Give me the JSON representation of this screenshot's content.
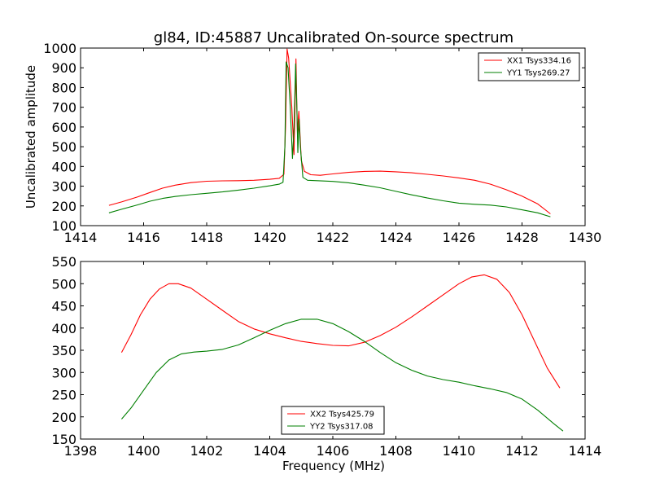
{
  "chart_data": [
    {
      "type": "line",
      "title": "gl84, ID:45887 Uncalibrated On-source spectrum",
      "xlabel": "",
      "ylabel": "Uncalibrated amplitude",
      "xlim": [
        1414,
        1430
      ],
      "ylim": [
        100,
        1000
      ],
      "xticks": [
        1414,
        1416,
        1418,
        1420,
        1422,
        1424,
        1426,
        1428,
        1430
      ],
      "yticks": [
        100,
        200,
        300,
        400,
        500,
        600,
        700,
        800,
        900,
        1000
      ],
      "grid": false,
      "legend_position": "top-right",
      "series": [
        {
          "name": "XX1 Tsys334.16",
          "color": "#ff0000",
          "points": [
            [
              1414.9,
              203
            ],
            [
              1415.3,
              220
            ],
            [
              1415.8,
              245
            ],
            [
              1416.2,
              268
            ],
            [
              1416.6,
              290
            ],
            [
              1417.0,
              305
            ],
            [
              1417.5,
              318
            ],
            [
              1418.0,
              325
            ],
            [
              1418.5,
              327
            ],
            [
              1419.0,
              328
            ],
            [
              1419.5,
              330
            ],
            [
              1420.0,
              335
            ],
            [
              1420.3,
              340
            ],
            [
              1420.45,
              360
            ],
            [
              1420.5,
              600
            ],
            [
              1420.55,
              995
            ],
            [
              1420.6,
              950
            ],
            [
              1420.7,
              700
            ],
            [
              1420.74,
              560
            ],
            [
              1420.77,
              460
            ],
            [
              1420.8,
              700
            ],
            [
              1420.83,
              945
            ],
            [
              1420.86,
              700
            ],
            [
              1420.88,
              560
            ],
            [
              1420.92,
              680
            ],
            [
              1420.96,
              560
            ],
            [
              1421.0,
              430
            ],
            [
              1421.1,
              375
            ],
            [
              1421.3,
              358
            ],
            [
              1421.6,
              355
            ],
            [
              1422.0,
              362
            ],
            [
              1422.5,
              370
            ],
            [
              1423.0,
              375
            ],
            [
              1423.5,
              376
            ],
            [
              1424.0,
              373
            ],
            [
              1424.5,
              368
            ],
            [
              1425.0,
              360
            ],
            [
              1425.5,
              352
            ],
            [
              1426.0,
              342
            ],
            [
              1426.5,
              330
            ],
            [
              1427.0,
              310
            ],
            [
              1427.5,
              282
            ],
            [
              1428.0,
              250
            ],
            [
              1428.5,
              210
            ],
            [
              1428.9,
              160
            ]
          ]
        },
        {
          "name": "YY1 Tsys269.27",
          "color": "#007f00",
          "points": [
            [
              1414.9,
              165
            ],
            [
              1415.3,
              183
            ],
            [
              1415.8,
              205
            ],
            [
              1416.2,
              224
            ],
            [
              1416.6,
              238
            ],
            [
              1417.0,
              248
            ],
            [
              1417.5,
              257
            ],
            [
              1418.0,
              264
            ],
            [
              1418.5,
              271
            ],
            [
              1419.0,
              280
            ],
            [
              1419.5,
              290
            ],
            [
              1420.0,
              302
            ],
            [
              1420.3,
              310
            ],
            [
              1420.42,
              320
            ],
            [
              1420.48,
              500
            ],
            [
              1420.52,
              930
            ],
            [
              1420.58,
              900
            ],
            [
              1420.65,
              700
            ],
            [
              1420.72,
              440
            ],
            [
              1420.77,
              600
            ],
            [
              1420.82,
              920
            ],
            [
              1420.86,
              700
            ],
            [
              1420.89,
              470
            ],
            [
              1420.93,
              640
            ],
            [
              1420.97,
              500
            ],
            [
              1421.05,
              345
            ],
            [
              1421.2,
              330
            ],
            [
              1421.5,
              328
            ],
            [
              1422.0,
              324
            ],
            [
              1422.5,
              317
            ],
            [
              1423.0,
              305
            ],
            [
              1423.5,
              292
            ],
            [
              1424.0,
              274
            ],
            [
              1424.5,
              256
            ],
            [
              1425.0,
              240
            ],
            [
              1425.5,
              226
            ],
            [
              1426.0,
              214
            ],
            [
              1426.5,
              208
            ],
            [
              1427.0,
              204
            ],
            [
              1427.5,
              195
            ],
            [
              1428.0,
              180
            ],
            [
              1428.5,
              165
            ],
            [
              1428.9,
              145
            ]
          ]
        }
      ]
    },
    {
      "type": "line",
      "title": "",
      "xlabel": "Frequency (MHz)",
      "ylabel": "",
      "xlim": [
        1398,
        1414
      ],
      "ylim": [
        150,
        550
      ],
      "xticks": [
        1398,
        1400,
        1402,
        1404,
        1406,
        1408,
        1410,
        1412,
        1414
      ],
      "yticks": [
        150,
        200,
        250,
        300,
        350,
        400,
        450,
        500,
        550
      ],
      "grid": false,
      "legend_position": "bottom-center",
      "series": [
        {
          "name": "XX2 Tsys425.79",
          "color": "#ff0000",
          "points": [
            [
              1399.3,
              345
            ],
            [
              1399.6,
              385
            ],
            [
              1399.9,
              430
            ],
            [
              1400.2,
              465
            ],
            [
              1400.5,
              488
            ],
            [
              1400.8,
              500
            ],
            [
              1401.1,
              500
            ],
            [
              1401.5,
              490
            ],
            [
              1402.0,
              465
            ],
            [
              1402.5,
              440
            ],
            [
              1403.0,
              415
            ],
            [
              1403.5,
              398
            ],
            [
              1404.0,
              387
            ],
            [
              1404.5,
              378
            ],
            [
              1405.0,
              370
            ],
            [
              1405.5,
              365
            ],
            [
              1406.0,
              361
            ],
            [
              1406.5,
              360
            ],
            [
              1407.0,
              368
            ],
            [
              1407.5,
              383
            ],
            [
              1408.0,
              402
            ],
            [
              1408.5,
              425
            ],
            [
              1409.0,
              450
            ],
            [
              1409.5,
              475
            ],
            [
              1410.0,
              500
            ],
            [
              1410.4,
              515
            ],
            [
              1410.8,
              520
            ],
            [
              1411.2,
              510
            ],
            [
              1411.6,
              480
            ],
            [
              1412.0,
              430
            ],
            [
              1412.4,
              370
            ],
            [
              1412.8,
              310
            ],
            [
              1413.2,
              265
            ]
          ]
        },
        {
          "name": "YY2 Tsys317.08",
          "color": "#007f00",
          "points": [
            [
              1399.3,
              195
            ],
            [
              1399.6,
              220
            ],
            [
              1400.0,
              260
            ],
            [
              1400.4,
              300
            ],
            [
              1400.8,
              328
            ],
            [
              1401.2,
              342
            ],
            [
              1401.6,
              346
            ],
            [
              1402.0,
              348
            ],
            [
              1402.5,
              352
            ],
            [
              1403.0,
              362
            ],
            [
              1403.5,
              378
            ],
            [
              1404.0,
              395
            ],
            [
              1404.5,
              410
            ],
            [
              1405.0,
              420
            ],
            [
              1405.5,
              420
            ],
            [
              1406.0,
              410
            ],
            [
              1406.5,
              392
            ],
            [
              1407.0,
              370
            ],
            [
              1407.5,
              345
            ],
            [
              1408.0,
              322
            ],
            [
              1408.5,
              305
            ],
            [
              1409.0,
              292
            ],
            [
              1409.5,
              284
            ],
            [
              1410.0,
              278
            ],
            [
              1410.5,
              270
            ],
            [
              1411.0,
              263
            ],
            [
              1411.5,
              255
            ],
            [
              1412.0,
              240
            ],
            [
              1412.5,
              215
            ],
            [
              1413.0,
              185
            ],
            [
              1413.3,
              168
            ]
          ]
        }
      ]
    }
  ]
}
